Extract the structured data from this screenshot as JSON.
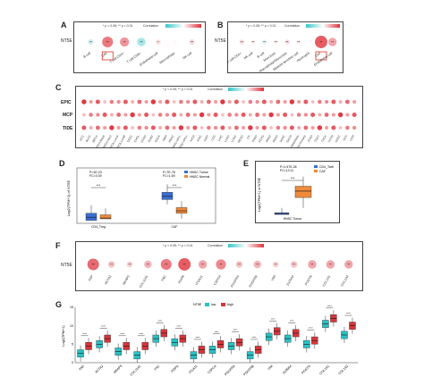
{
  "panels": {
    "a": {
      "label": "A",
      "significance": "* p < 0.05; ** p < 0.01",
      "legend_title": "Correlation",
      "legend_ticks": [
        "-1.0",
        "-0.5",
        "0.0",
        "0.5",
        "1.0"
      ],
      "row": "NT5E",
      "columns": [
        "B cell",
        "CAF",
        "T cell CD4+",
        "T cell CD8+",
        "Endothelial cell",
        "Macrophage",
        "NK cell"
      ],
      "marks": [
        "**",
        "**",
        "**",
        "**",
        "*",
        "",
        "**"
      ],
      "highlight": "CAF"
    },
    "b": {
      "label": "B",
      "significance": "* p < 0.05; ** p < 0.01",
      "legend_title": "Correlation",
      "legend_ticks": [
        "-1.0",
        "-0.5",
        "0.0",
        "0.5",
        "1.0"
      ],
      "row": "NT5E",
      "columns": [
        "T cell CD4+",
        "NK cell",
        "B cell",
        "Monocyte",
        "Macrophage/Monocyte",
        "Myeloid dendritic cell",
        "Neutrophil",
        "CAF",
        "Endothelial cell"
      ],
      "marks": [
        "**",
        "**",
        "**",
        "**",
        "**",
        "**",
        "",
        "**",
        "**"
      ],
      "highlight": "CAF"
    },
    "c": {
      "label": "C",
      "significance": "* p < 0.05; ** p < 0.01",
      "legend_title": "Correlation",
      "legend_ticks": [
        "-1.0",
        "-0.5",
        "0.0",
        "0.5",
        "1.0"
      ],
      "rows": [
        "EPIC",
        "MCP",
        "TIDE"
      ],
      "columns": [
        "ACC",
        "BLCA",
        "BRCA",
        "BRCA-Basal",
        "BRCA-Her2",
        "BRCA-LumA",
        "BRCA-LumB",
        "CESC",
        "CHOL",
        "COAD",
        "DLBC",
        "ESCA",
        "GBM",
        "HNSC",
        "HNSC-HPV-",
        "HNSC-HPV+",
        "KICH",
        "KIRC",
        "KIRP",
        "LGG",
        "LIHC",
        "LUAD",
        "LUSC",
        "MESO",
        "OV",
        "PAAD",
        "PCPG",
        "PRAD",
        "READ",
        "SARC",
        "SKCM",
        "SKCM-Metastasis",
        "SKCM-Primary",
        "STAD",
        "TGCT",
        "THCA",
        "THYM",
        "UCEC",
        "UCS",
        "UVM"
      ]
    },
    "d": {
      "label": "D",
      "stat_left": "P=1E-23",
      "stat_left2": "FC=0.39",
      "stat_right": "P=7E-78",
      "stat_right2": "FC=1.69",
      "ylabel": "Log2(TPM+1) of NT5E",
      "legend": [
        "HNSC Tumor",
        "HNSC Normal"
      ],
      "categories": [
        "CD4_Treg",
        "CAF"
      ],
      "stars": [
        "***",
        "***"
      ]
    },
    "e": {
      "label": "E",
      "stat": "P=1.97E-26",
      "stat2": "FC=13.11",
      "ylabel": "Log2(TPM+1) of NT5E",
      "legend": [
        "CD4_Tcell",
        "CAF"
      ],
      "categories": [
        "HNSC Tumor"
      ],
      "stars": [
        "***"
      ]
    },
    "f": {
      "label": "F",
      "significance": "* p < 0.05; ** p < 0.01",
      "legend_title": "Correlation",
      "legend_ticks": [
        "-1.0",
        "-0.5",
        "0.0",
        "0.5",
        "1.0"
      ],
      "row": "NT5E",
      "columns": [
        "FAP",
        "ACTA2",
        "MFAP5",
        "COL11A1",
        "TNC",
        "PDPN",
        "ITGA11",
        "CSPG4",
        "PDGFRA",
        "PDGFRB",
        "VIM",
        "S100A4",
        "POSTN",
        "COL1A1",
        "COL1A2"
      ],
      "marks": [
        "**",
        "**",
        "**",
        "**",
        "**",
        "**",
        "**",
        "**",
        "**",
        "**",
        "**",
        "**",
        "**",
        "**",
        "**"
      ]
    },
    "g": {
      "label": "G",
      "legend_title": "NT5E",
      "legend": [
        "low",
        "high"
      ],
      "ylabel": "Log2(TPM+1)",
      "genes": [
        "FAP",
        "ACTA2",
        "MFAP5",
        "COL11A1",
        "TNC",
        "PDPN",
        "ITGA11",
        "CSPG4",
        "PDGFRA",
        "PDGFRB",
        "VIM",
        "S100A4",
        "POSTN",
        "COL1A1",
        "COL1A2"
      ],
      "stars": [
        "****",
        "****",
        "****",
        "****",
        "****",
        "****",
        "****",
        "****",
        "****",
        "****",
        "****",
        "****",
        "****",
        "****",
        "****"
      ],
      "yticks": [
        "0",
        "5",
        "10",
        "15"
      ]
    }
  },
  "chart_data": [
    {
      "type": "heatmap",
      "panel": "A",
      "rows": [
        "NT5E"
      ],
      "x": [
        "B cell",
        "CAF",
        "T cell CD4+",
        "T cell CD8+",
        "Endothelial cell",
        "Macrophage",
        "NK cell"
      ],
      "values": [
        [
          -0.15,
          0.45,
          0.35,
          -0.3,
          0.1,
          0.02,
          0.12
        ]
      ]
    },
    {
      "type": "heatmap",
      "panel": "B",
      "rows": [
        "NT5E"
      ],
      "x": [
        "T cell CD4+",
        "NK cell",
        "B cell",
        "Monocyte",
        "Macrophage/Monocyte",
        "Myeloid dendritic cell",
        "Neutrophil",
        "CAF",
        "Endothelial cell"
      ],
      "values": [
        [
          0.1,
          0.05,
          -0.1,
          0.05,
          0.1,
          0.05,
          0.02,
          0.55,
          0.3
        ]
      ]
    },
    {
      "type": "heatmap",
      "panel": "F",
      "rows": [
        "NT5E"
      ],
      "x": [
        "FAP",
        "ACTA2",
        "MFAP5",
        "COL11A1",
        "TNC",
        "PDPN",
        "ITGA11",
        "CSPG4",
        "PDGFRA",
        "PDGFRB",
        "VIM",
        "S100A4",
        "POSTN",
        "COL1A1",
        "COL1A2"
      ],
      "values": [
        [
          0.5,
          0.2,
          0.15,
          0.25,
          0.45,
          0.55,
          0.3,
          0.4,
          0.2,
          0.25,
          0.15,
          0.2,
          0.3,
          0.3,
          0.3
        ]
      ]
    },
    {
      "type": "box",
      "panel": "D",
      "categories": [
        "CD4_Treg",
        "CAF"
      ],
      "series": [
        {
          "name": "HNSC Tumor",
          "median": [
            0.2,
            2.8
          ]
        },
        {
          "name": "HNSC Normal",
          "median": [
            0.1,
            1.0
          ]
        }
      ]
    },
    {
      "type": "box",
      "panel": "E",
      "categories": [
        "HNSC Tumor"
      ],
      "series": [
        {
          "name": "CD4_Tcell",
          "median": [
            0.1
          ]
        },
        {
          "name": "CAF",
          "median": [
            2.9
          ]
        }
      ]
    },
    {
      "type": "box",
      "panel": "G",
      "categories": [
        "FAP",
        "ACTA2",
        "MFAP5",
        "COL11A1",
        "TNC",
        "PDPN",
        "ITGA11",
        "CSPG4",
        "PDGFRA",
        "PDGFRB",
        "VIM",
        "S100A4",
        "POSTN",
        "COL1A1",
        "COL1A2"
      ],
      "ylim": [
        0,
        15
      ],
      "series": [
        {
          "name": "low",
          "median": [
            2.5,
            5.0,
            3.0,
            2.0,
            6.5,
            5.5,
            2.0,
            3.5,
            4.5,
            2.0,
            7.0,
            6.5,
            5.0,
            10.5,
            7.5
          ]
        },
        {
          "name": "high",
          "median": [
            4.5,
            6.5,
            4.5,
            4.5,
            8.0,
            6.5,
            3.5,
            5.0,
            5.5,
            3.5,
            8.5,
            8.0,
            6.0,
            12.0,
            10.0
          ]
        }
      ]
    }
  ],
  "colors": {
    "pos": "#e0303a",
    "neg": "#38c6c8",
    "box_low": "#29c2c6",
    "box_high": "#d8353a",
    "d_tumor": "#3b6fd1",
    "d_normal": "#f08a3c"
  }
}
